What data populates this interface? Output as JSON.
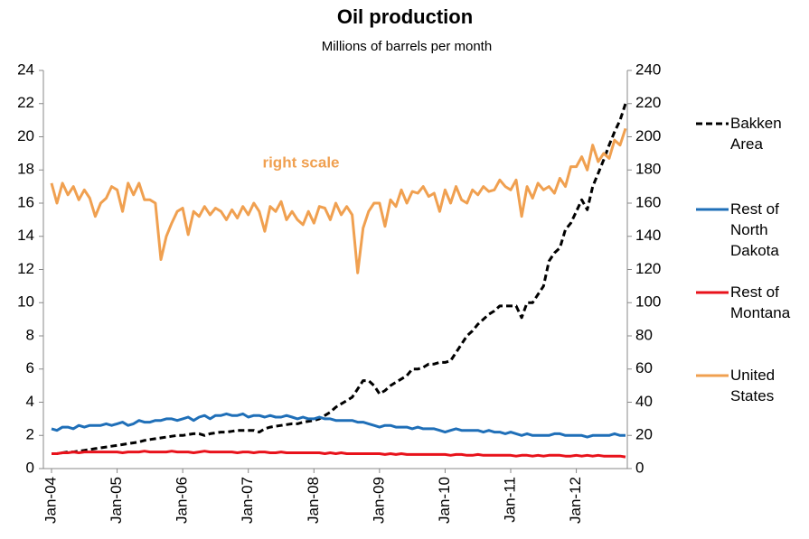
{
  "chart_data": {
    "type": "line",
    "title": "Oil production",
    "subtitle": "Millions of barrels per month",
    "annotation": "right scale",
    "categories": [
      "Jan-04",
      null,
      null,
      null,
      null,
      null,
      null,
      null,
      null,
      null,
      null,
      null,
      "Jan-05",
      null,
      null,
      null,
      null,
      null,
      null,
      null,
      null,
      null,
      null,
      null,
      "Jan-06",
      null,
      null,
      null,
      null,
      null,
      null,
      null,
      null,
      null,
      null,
      null,
      "Jan-07",
      null,
      null,
      null,
      null,
      null,
      null,
      null,
      null,
      null,
      null,
      null,
      "Jan-08",
      null,
      null,
      null,
      null,
      null,
      null,
      null,
      null,
      null,
      null,
      null,
      "Jan-09",
      null,
      null,
      null,
      null,
      null,
      null,
      null,
      null,
      null,
      null,
      null,
      "Jan-10",
      null,
      null,
      null,
      null,
      null,
      null,
      null,
      null,
      null,
      null,
      null,
      "Jan-11",
      null,
      null,
      null,
      null,
      null,
      null,
      null,
      null,
      null,
      null,
      null,
      "Jan-12",
      null,
      null,
      null,
      null,
      null,
      null,
      null,
      null,
      null
    ],
    "ylim": [
      0,
      24
    ],
    "yticks": [
      0,
      2,
      4,
      6,
      8,
      10,
      12,
      14,
      16,
      18,
      20,
      22,
      24
    ],
    "y2lim": [
      0,
      240
    ],
    "y2ticks": [
      0,
      20,
      40,
      60,
      80,
      100,
      120,
      140,
      160,
      180,
      200,
      220,
      240
    ],
    "grid": false,
    "legend": "right",
    "series": [
      {
        "name": "Bakken Area",
        "color": "#000000",
        "dash": true,
        "values": [
          0.9,
          0.9,
          0.95,
          1.0,
          1.0,
          1.05,
          1.1,
          1.15,
          1.2,
          1.25,
          1.3,
          1.35,
          1.4,
          1.45,
          1.5,
          1.55,
          1.6,
          1.7,
          1.75,
          1.8,
          1.85,
          1.9,
          1.95,
          2.0,
          2.0,
          2.05,
          2.1,
          2.1,
          2.0,
          2.1,
          2.15,
          2.2,
          2.2,
          2.25,
          2.3,
          2.3,
          2.3,
          2.3,
          2.2,
          2.4,
          2.5,
          2.55,
          2.6,
          2.65,
          2.7,
          2.7,
          2.8,
          2.85,
          2.9,
          3.0,
          3.2,
          3.4,
          3.7,
          3.9,
          4.1,
          4.3,
          4.8,
          5.3,
          5.3,
          5.0,
          4.5,
          4.7,
          5.0,
          5.2,
          5.4,
          5.6,
          6.0,
          6.0,
          6.1,
          6.3,
          6.3,
          6.4,
          6.4,
          6.5,
          7.0,
          7.5,
          8.0,
          8.3,
          8.7,
          9.0,
          9.3,
          9.5,
          9.8,
          9.8,
          9.8,
          9.8,
          9.1,
          10.0,
          10.0,
          10.5,
          11.0,
          12.5,
          13.0,
          13.3,
          14.4,
          14.8,
          15.5,
          16.2,
          15.6,
          17.0,
          17.8,
          18.6,
          19.5,
          20.3,
          21.0,
          22.0
        ]
      },
      {
        "name": "Rest of North Dakota",
        "color": "#1f6fb8",
        "values": [
          2.4,
          2.3,
          2.5,
          2.5,
          2.4,
          2.6,
          2.5,
          2.6,
          2.6,
          2.6,
          2.7,
          2.6,
          2.7,
          2.8,
          2.6,
          2.7,
          2.9,
          2.8,
          2.8,
          2.9,
          2.9,
          3.0,
          3.0,
          2.9,
          3.0,
          3.1,
          2.9,
          3.1,
          3.2,
          3.0,
          3.2,
          3.2,
          3.3,
          3.2,
          3.2,
          3.3,
          3.1,
          3.2,
          3.2,
          3.1,
          3.2,
          3.1,
          3.1,
          3.2,
          3.1,
          3.0,
          3.1,
          3.0,
          3.0,
          3.1,
          3.0,
          3.0,
          2.9,
          2.9,
          2.9,
          2.9,
          2.8,
          2.8,
          2.7,
          2.6,
          2.5,
          2.6,
          2.6,
          2.5,
          2.5,
          2.5,
          2.4,
          2.5,
          2.4,
          2.4,
          2.4,
          2.3,
          2.2,
          2.3,
          2.4,
          2.3,
          2.3,
          2.3,
          2.3,
          2.2,
          2.3,
          2.2,
          2.2,
          2.1,
          2.2,
          2.1,
          2.0,
          2.1,
          2.0,
          2.0,
          2.0,
          2.0,
          2.1,
          2.1,
          2.0,
          2.0,
          2.0,
          2.0,
          1.9,
          2.0,
          2.0,
          2.0,
          2.0,
          2.1,
          2.0,
          2.0
        ]
      },
      {
        "name": "Rest of Montana",
        "color": "#e8121b",
        "values": [
          0.9,
          0.9,
          0.95,
          0.95,
          1.0,
          0.95,
          1.0,
          1.0,
          1.0,
          1.0,
          1.0,
          1.0,
          1.0,
          0.95,
          1.0,
          1.0,
          1.0,
          1.05,
          1.0,
          1.0,
          1.0,
          1.0,
          1.05,
          1.0,
          1.0,
          1.0,
          0.95,
          1.0,
          1.05,
          1.0,
          1.0,
          1.0,
          1.0,
          1.0,
          0.95,
          1.0,
          1.0,
          0.95,
          1.0,
          1.0,
          0.95,
          0.95,
          1.0,
          0.95,
          0.95,
          0.95,
          0.95,
          0.95,
          0.95,
          0.95,
          0.9,
          0.95,
          0.9,
          0.95,
          0.9,
          0.9,
          0.9,
          0.9,
          0.9,
          0.9,
          0.9,
          0.85,
          0.9,
          0.85,
          0.9,
          0.85,
          0.85,
          0.85,
          0.85,
          0.85,
          0.85,
          0.85,
          0.85,
          0.8,
          0.85,
          0.85,
          0.8,
          0.8,
          0.85,
          0.8,
          0.8,
          0.8,
          0.8,
          0.8,
          0.8,
          0.75,
          0.8,
          0.8,
          0.75,
          0.8,
          0.75,
          0.8,
          0.8,
          0.8,
          0.75,
          0.75,
          0.8,
          0.75,
          0.8,
          0.75,
          0.8,
          0.75,
          0.75,
          0.75,
          0.75,
          0.7
        ]
      },
      {
        "name": "United States",
        "color": "#f0a050",
        "axis": "y2",
        "values": [
          172,
          160,
          172,
          165,
          170,
          162,
          168,
          163,
          152,
          160,
          163,
          170,
          168,
          155,
          172,
          165,
          172,
          162,
          162,
          160,
          126,
          140,
          148,
          155,
          157,
          141,
          155,
          152,
          158,
          153,
          157,
          155,
          150,
          156,
          151,
          158,
          153,
          160,
          155,
          143,
          158,
          155,
          161,
          150,
          155,
          150,
          147,
          155,
          148,
          158,
          157,
          150,
          160,
          153,
          158,
          153,
          118,
          145,
          155,
          160,
          160,
          146,
          162,
          158,
          168,
          160,
          167,
          166,
          170,
          164,
          166,
          155,
          168,
          160,
          170,
          162,
          160,
          168,
          165,
          170,
          167,
          168,
          174,
          170,
          168,
          174,
          152,
          170,
          163,
          172,
          168,
          170,
          166,
          175,
          170,
          182,
          182,
          188,
          180,
          195,
          185,
          190,
          187,
          198,
          195,
          205
        ]
      }
    ]
  }
}
